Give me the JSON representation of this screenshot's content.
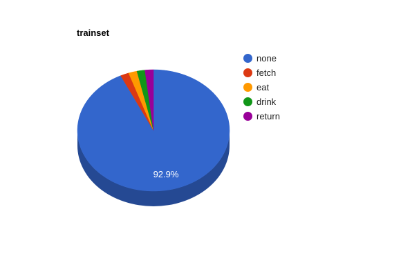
{
  "chart_data": {
    "type": "pie",
    "title": "trainset",
    "three_d": true,
    "legend_position": "right",
    "slices": [
      {
        "label": "none",
        "value": 92.9,
        "color": "#3366cc"
      },
      {
        "label": "fetch",
        "value": 1.8,
        "color": "#dc3912"
      },
      {
        "label": "eat",
        "value": 1.8,
        "color": "#ff9900"
      },
      {
        "label": "drink",
        "value": 1.7,
        "color": "#109618"
      },
      {
        "label": "return",
        "value": 1.8,
        "color": "#990099"
      }
    ],
    "data_labels": [
      "92.9%"
    ]
  }
}
